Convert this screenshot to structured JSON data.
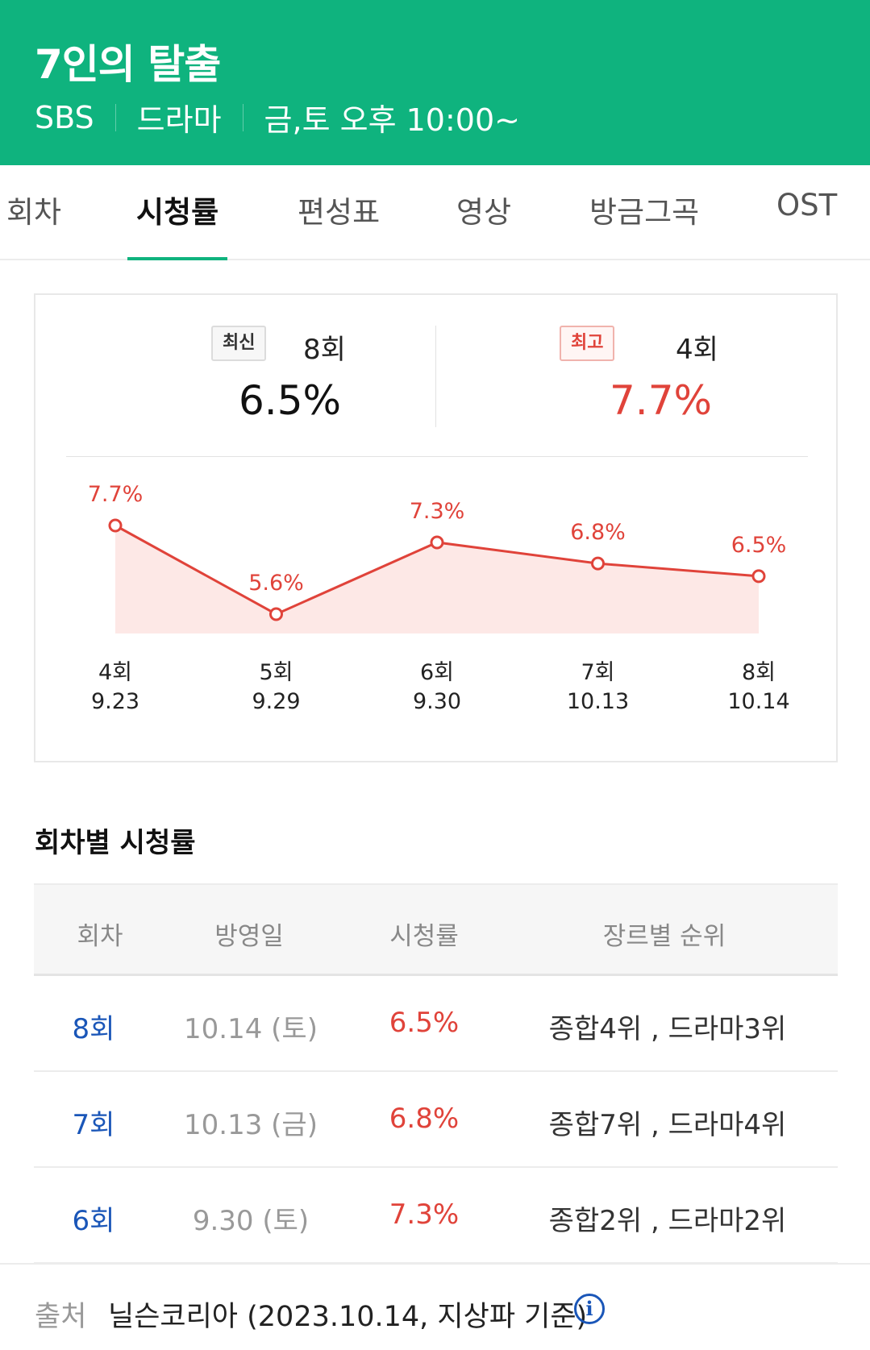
{
  "header": {
    "title": "7인의 탈출",
    "channel": "SBS",
    "genre": "드라마",
    "schedule": "금,토 오후 10:00~"
  },
  "tabs": [
    {
      "label": "회차",
      "active": false
    },
    {
      "label": "시청률",
      "active": true
    },
    {
      "label": "편성표",
      "active": false
    },
    {
      "label": "영상",
      "active": false
    },
    {
      "label": "방금그곡",
      "active": false
    },
    {
      "label": "OST",
      "active": false
    }
  ],
  "summary": {
    "latest": {
      "badge": "최신",
      "episode": "8회",
      "rating": "6.5%"
    },
    "best": {
      "badge": "최고",
      "episode": "4회",
      "rating": "7.7%"
    }
  },
  "chart_data": {
    "type": "area",
    "categories": [
      "4회\n9.23",
      "5회\n9.29",
      "6회\n9.30",
      "7회\n10.13",
      "8회\n10.14"
    ],
    "x_episode": [
      "4회",
      "5회",
      "6회",
      "7회",
      "8회"
    ],
    "x_date": [
      "9.23",
      "9.29",
      "9.30",
      "10.13",
      "10.14"
    ],
    "values": [
      7.7,
      5.6,
      7.3,
      6.8,
      6.5
    ],
    "value_labels": [
      "7.7%",
      "5.6%",
      "7.3%",
      "6.8%",
      "6.5%"
    ],
    "line_color": "#e0433a",
    "fill_color": "#fde8e6"
  },
  "section_title": "회차별 시청률",
  "table": {
    "headers": [
      "회차",
      "방영일",
      "시청률",
      "장르별 순위"
    ],
    "rows": [
      {
        "episode": "8회",
        "date": "10.14 (토)",
        "rating": "6.5%",
        "rank": "종합4위 , 드라마3위"
      },
      {
        "episode": "7회",
        "date": "10.13 (금)",
        "rating": "6.8%",
        "rank": "종합7위 , 드라마4위"
      },
      {
        "episode": "6회",
        "date": "9.30 (토)",
        "rating": "7.3%",
        "rank": "종합2위 , 드라마2위"
      }
    ]
  },
  "source": {
    "label": "출처",
    "text": "닐슨코리아 (2023.10.14, 지상파 기준)",
    "icon": "info-icon"
  }
}
